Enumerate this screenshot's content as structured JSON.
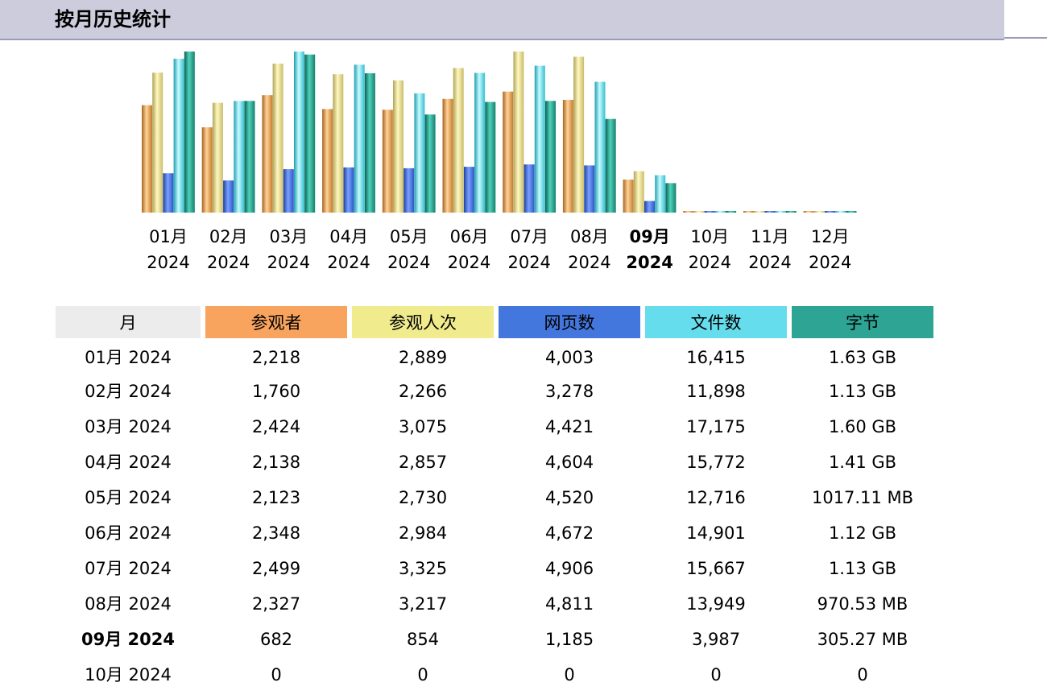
{
  "header": {
    "title": "按月历史统计"
  },
  "colors": {
    "visitors": "#f9a45e",
    "visits": "#f0eb8d",
    "pages": "#4477dd",
    "files": "#66dded",
    "bytes": "#2ea495",
    "month_header": "#ececec",
    "header_bar": "#ccccdd"
  },
  "table": {
    "headers": {
      "month": "月",
      "visitors": "参观者",
      "visits": "参观人次",
      "pages": "网页数",
      "files": "文件数",
      "bytes": "字节"
    },
    "rows": [
      {
        "month": "01月 2024",
        "visitors": "2,218",
        "visits": "2,889",
        "pages": "4,003",
        "files": "16,415",
        "bytes": "1.63 GB"
      },
      {
        "month": "02月 2024",
        "visitors": "1,760",
        "visits": "2,266",
        "pages": "3,278",
        "files": "11,898",
        "bytes": "1.13 GB"
      },
      {
        "month": "03月 2024",
        "visitors": "2,424",
        "visits": "3,075",
        "pages": "4,421",
        "files": "17,175",
        "bytes": "1.60 GB"
      },
      {
        "month": "04月 2024",
        "visitors": "2,138",
        "visits": "2,857",
        "pages": "4,604",
        "files": "15,772",
        "bytes": "1.41 GB"
      },
      {
        "month": "05月 2024",
        "visitors": "2,123",
        "visits": "2,730",
        "pages": "4,520",
        "files": "12,716",
        "bytes": "1017.11 MB"
      },
      {
        "month": "06月 2024",
        "visitors": "2,348",
        "visits": "2,984",
        "pages": "4,672",
        "files": "14,901",
        "bytes": "1.12 GB"
      },
      {
        "month": "07月 2024",
        "visitors": "2,499",
        "visits": "3,325",
        "pages": "4,906",
        "files": "15,667",
        "bytes": "1.13 GB"
      },
      {
        "month": "08月 2024",
        "visitors": "2,327",
        "visits": "3,217",
        "pages": "4,811",
        "files": "13,949",
        "bytes": "970.53 MB"
      },
      {
        "month": "09月 2024",
        "visitors": "682",
        "visits": "854",
        "pages": "1,185",
        "files": "3,987",
        "bytes": "305.27 MB",
        "current": true
      },
      {
        "month": "10月 2024",
        "visitors": "0",
        "visits": "0",
        "pages": "0",
        "files": "0",
        "bytes": "0"
      }
    ]
  },
  "chart_data": {
    "type": "bar",
    "categories": [
      {
        "month": "01月",
        "year": "2024"
      },
      {
        "month": "02月",
        "year": "2024"
      },
      {
        "month": "03月",
        "year": "2024"
      },
      {
        "month": "04月",
        "year": "2024"
      },
      {
        "month": "05月",
        "year": "2024"
      },
      {
        "month": "06月",
        "year": "2024"
      },
      {
        "month": "07月",
        "year": "2024"
      },
      {
        "month": "08月",
        "year": "2024"
      },
      {
        "month": "09月",
        "year": "2024"
      },
      {
        "month": "10月",
        "year": "2024"
      },
      {
        "month": "11月",
        "year": "2024"
      },
      {
        "month": "12月",
        "year": "2024"
      }
    ],
    "current_index": 8,
    "series": [
      {
        "key": "visitors",
        "values": [
          2218,
          1760,
          2424,
          2138,
          2123,
          2348,
          2499,
          2327,
          682,
          0,
          0,
          0
        ]
      },
      {
        "key": "visits",
        "values": [
          2889,
          2266,
          3075,
          2857,
          2730,
          2984,
          3325,
          3217,
          854,
          0,
          0,
          0
        ]
      },
      {
        "key": "pages",
        "values": [
          4003,
          3278,
          4421,
          4604,
          4520,
          4672,
          4906,
          4811,
          1185,
          0,
          0,
          0
        ]
      },
      {
        "key": "files",
        "values": [
          16415,
          11898,
          17175,
          15772,
          12716,
          14901,
          15667,
          13949,
          3987,
          0,
          0,
          0
        ]
      },
      {
        "key": "bytes",
        "values": [
          1.63,
          1.13,
          1.6,
          1.41,
          0.993,
          1.12,
          1.13,
          0.948,
          0.298,
          0,
          0,
          0
        ],
        "unit": "GB"
      }
    ],
    "axis_groups": [
      {
        "series": [
          "visitors",
          "visits"
        ],
        "max": 3325
      },
      {
        "series": [
          "pages"
        ],
        "max": 16415
      },
      {
        "series": [
          "files"
        ],
        "max": 17175
      },
      {
        "series": [
          "bytes"
        ],
        "max": 1.63
      }
    ]
  }
}
